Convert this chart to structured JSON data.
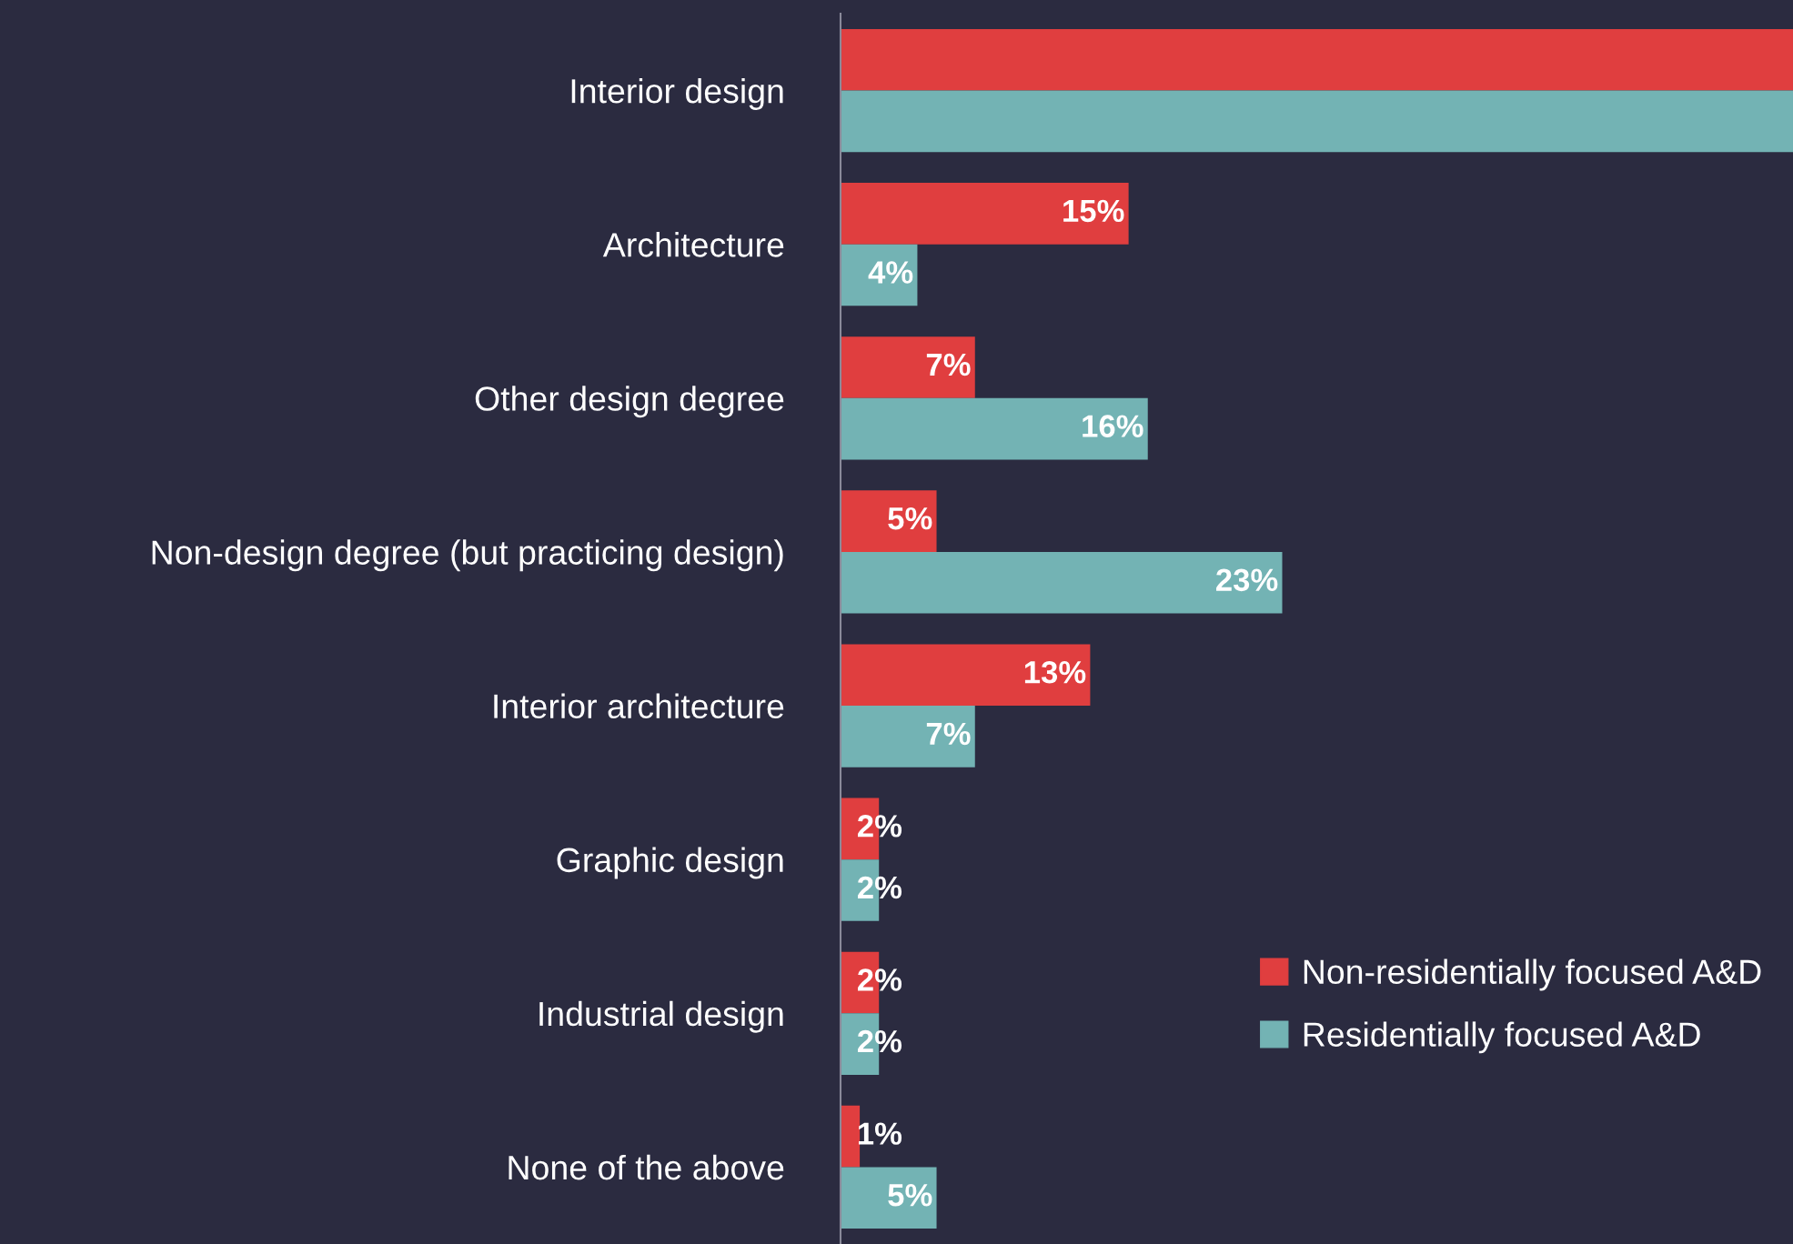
{
  "chart_data": {
    "type": "bar",
    "orientation": "horizontal",
    "categories": [
      "Interior design",
      "Architecture",
      "Other design degree",
      "Non-design degree (but practicing design)",
      "Interior architecture",
      "Graphic design",
      "Industrial design",
      "None of the above"
    ],
    "series": [
      {
        "name": "Non-residentially focused A&D",
        "color": "#e03e3f",
        "values": [
          49.6,
          15,
          7,
          5,
          13,
          2,
          2,
          1
        ],
        "value_labels": [
          null,
          "15%",
          "7%",
          "5%",
          "13%",
          "2%",
          "2%",
          "1%"
        ]
      },
      {
        "name": "Residentially focused A&D",
        "color": "#73b3b4",
        "values": [
          49.6,
          4,
          16,
          23,
          7,
          2,
          2,
          5
        ],
        "value_labels": [
          null,
          "4%",
          "16%",
          "23%",
          "7%",
          "2%",
          "2%",
          "5%"
        ]
      }
    ],
    "xlim": [
      0,
      49.6
    ],
    "tick_labels": "y",
    "grid": false,
    "legend": "bottom right"
  }
}
